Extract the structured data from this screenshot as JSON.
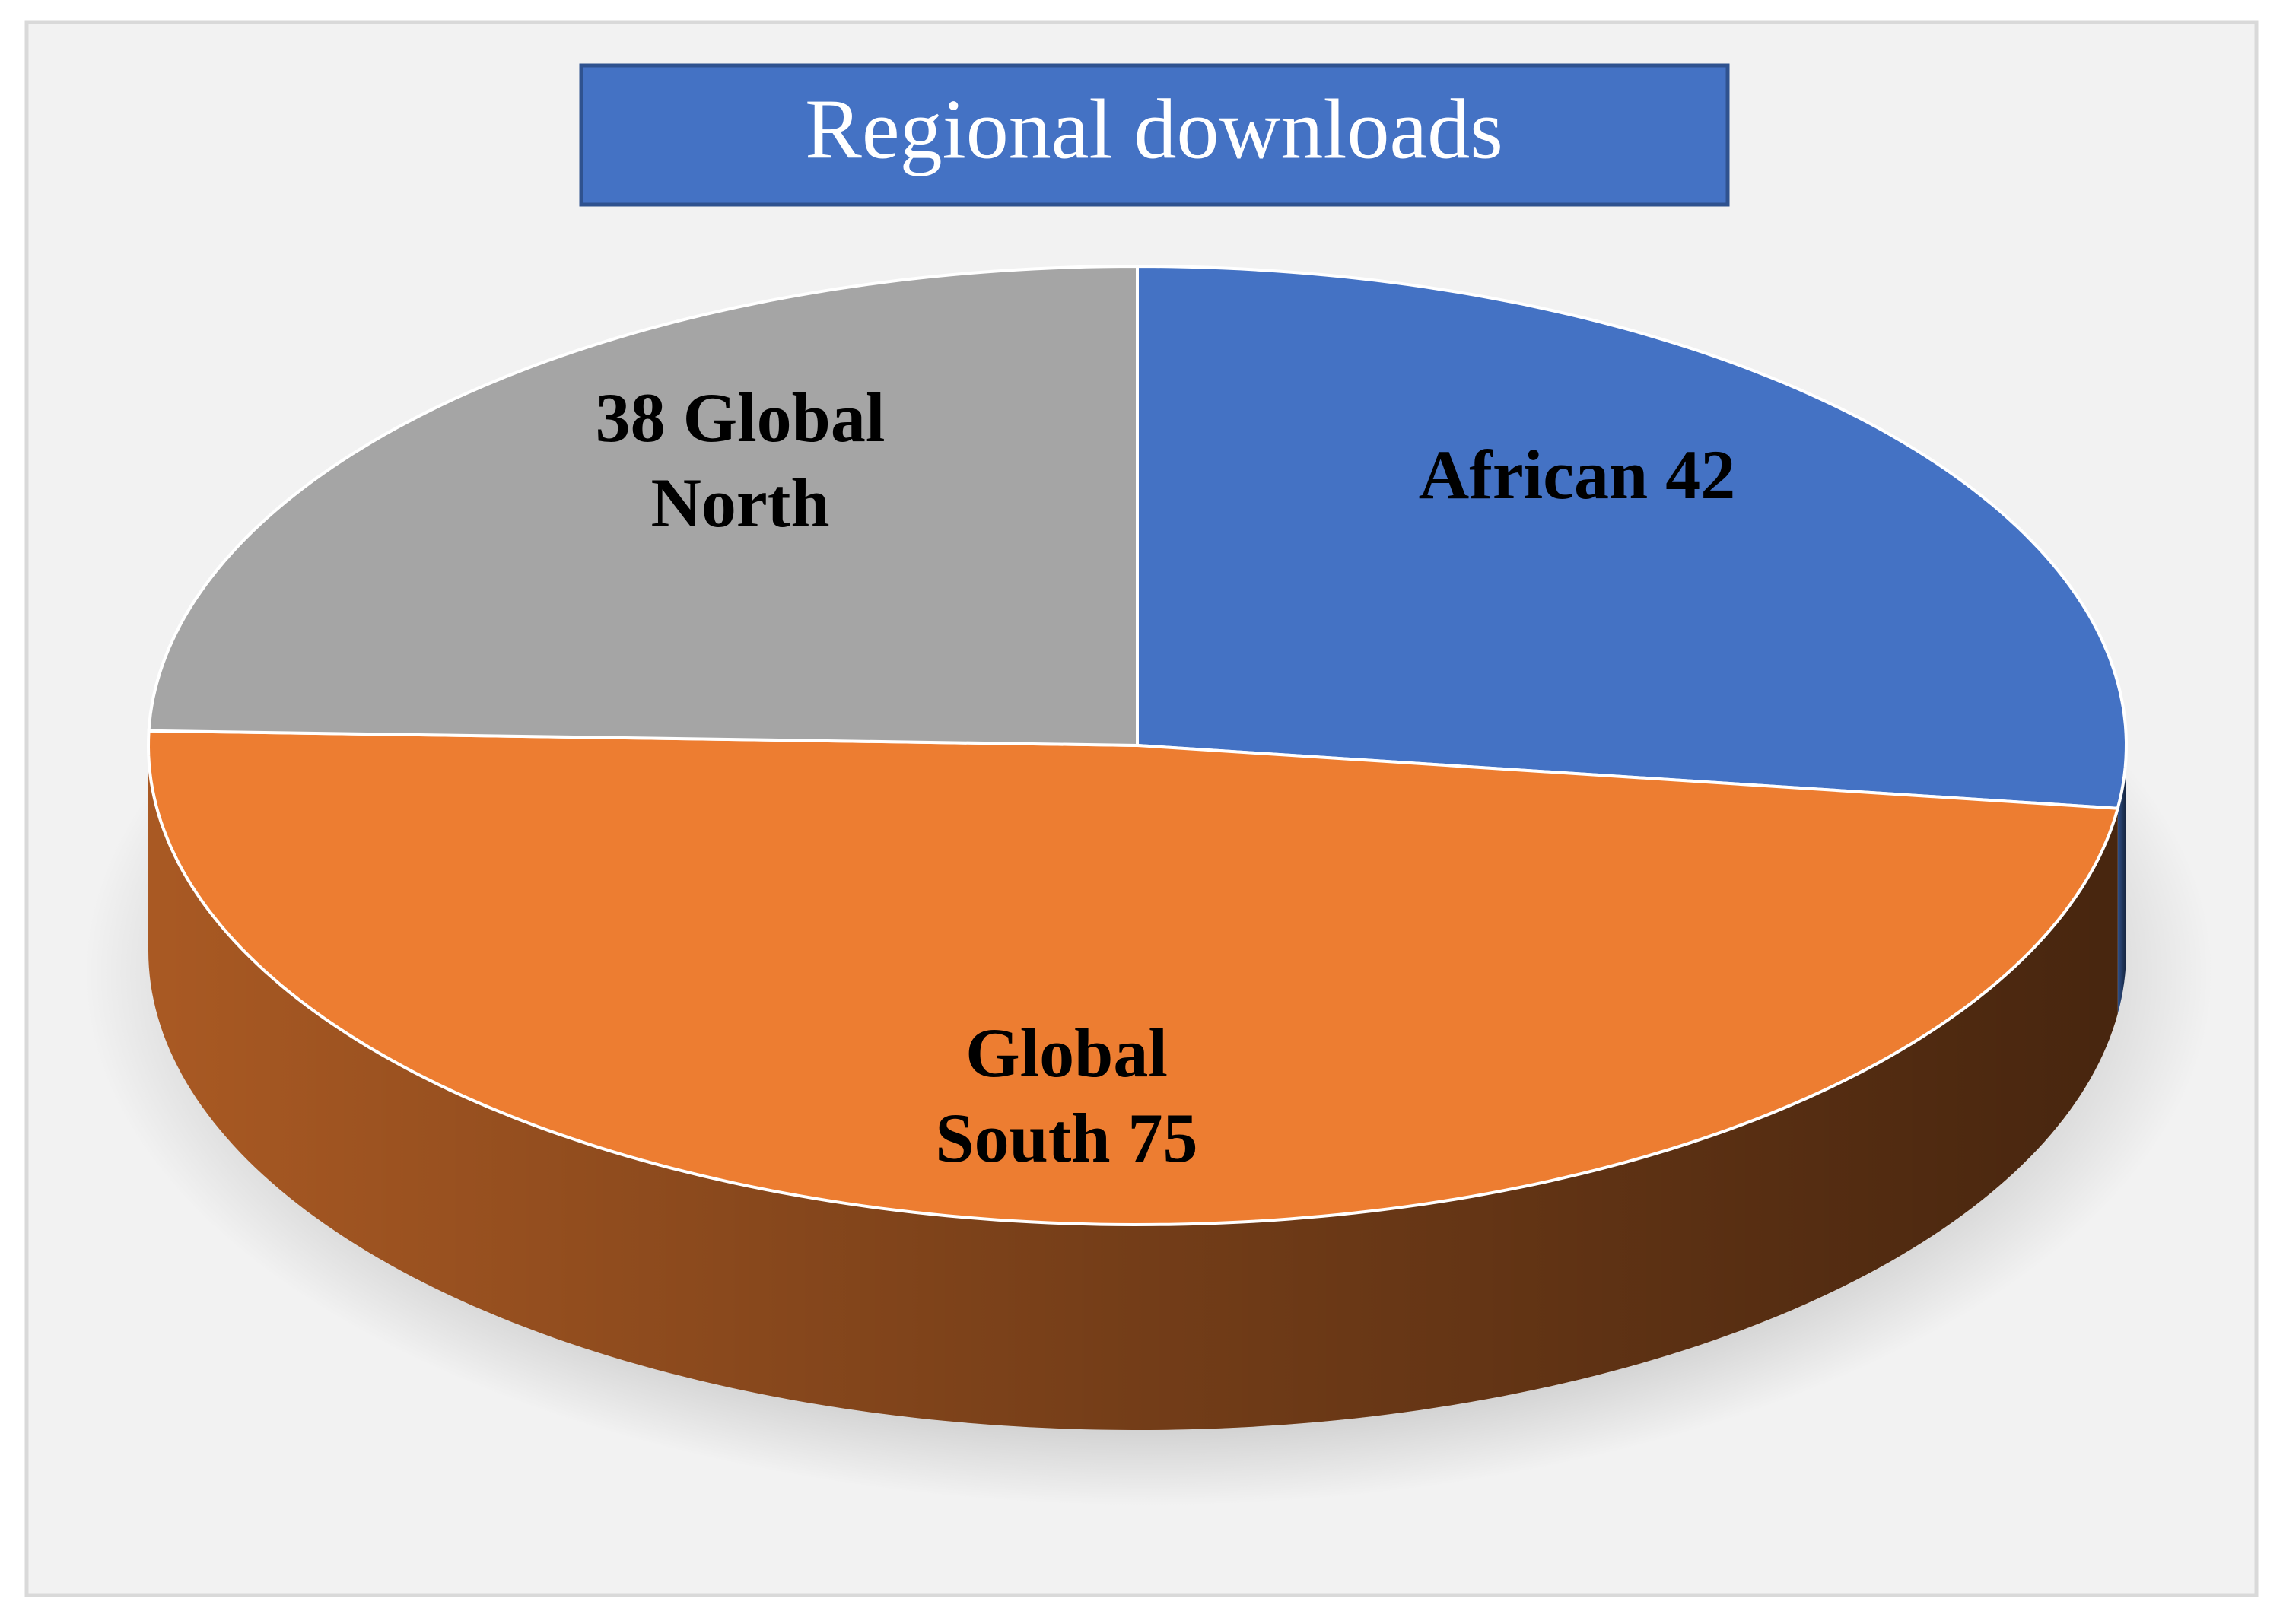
{
  "chart_data": {
    "type": "pie",
    "title": "Regional downloads",
    "values": [
      42,
      75,
      38
    ],
    "value_labels": [
      "African 42",
      "Global South 75",
      "38 Global North"
    ],
    "colors": [
      "#4472c4",
      "#ed7d31",
      "#a5a5a5"
    ]
  }
}
